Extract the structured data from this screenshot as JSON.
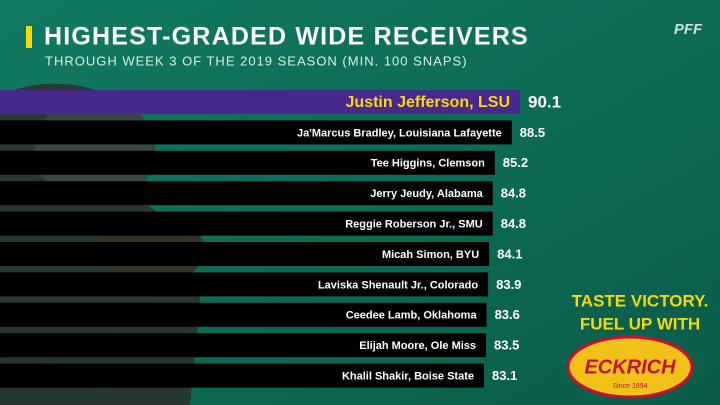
{
  "chart_data": {
    "type": "bar",
    "orientation": "horizontal",
    "title": "HIGHEST-GRADED WIDE RECEIVERS",
    "subtitle": "THROUGH WEEK 3 OF THE 2019 SEASON (MIN. 100 SNAPS)",
    "categories": [
      "Justin Jefferson, LSU",
      "Ja'Marcus Bradley, Louisiana Lafayette",
      "Tee Higgins, Clemson",
      "Jerry Jeudy, Alabama",
      "Reggie Roberson Jr., SMU",
      "Micah Simon, BYU",
      "Laviska Shenault Jr., Colorado",
      "Ceedee Lamb, Oklahoma",
      "Elijah Moore, Ole Miss",
      "Khalil Shakir, Boise State"
    ],
    "values": [
      90.1,
      88.5,
      85.2,
      84.8,
      84.8,
      84.1,
      83.9,
      83.6,
      83.5,
      83.1
    ],
    "colors": [
      "#47288e",
      "#000000",
      "#000000",
      "#000000",
      "#000000",
      "#000000",
      "#000000",
      "#000000",
      "#000000",
      "#000000"
    ]
  },
  "logo": "PFF",
  "ad": {
    "lines": [
      "TASTE VICTORY.",
      "FUEL UP WITH"
    ],
    "brand": "ECKRICH",
    "since": "Since 1894"
  }
}
